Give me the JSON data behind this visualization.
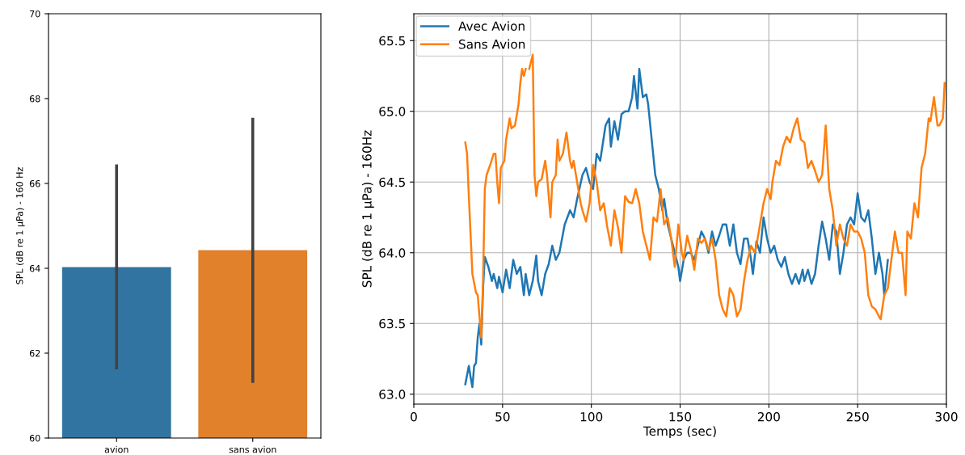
{
  "chart_data": [
    {
      "type": "bar",
      "ylabel": "SPL (dB re 1 µPa) - 160 Hz",
      "categories": [
        "avion",
        "sans avion"
      ],
      "values": [
        64.03,
        64.43
      ],
      "colors": [
        "#3274a1",
        "#e1812c"
      ],
      "errors": [
        [
          61.62,
          66.45
        ],
        [
          61.3,
          67.55
        ]
      ],
      "ylim": [
        60,
        70
      ],
      "yticks": [
        60,
        62,
        64,
        66,
        68,
        70
      ],
      "grid": false
    },
    {
      "type": "line",
      "xlabel": "Temps (sec)",
      "ylabel": "SPL (dB re 1 µPa) - 160Hz",
      "xlim": [
        0,
        300
      ],
      "xticks": [
        0,
        50,
        100,
        150,
        200,
        250,
        300
      ],
      "ylim": [
        62.93,
        65.69
      ],
      "yticks": [
        {
          "value": 63.0,
          "label": "63.0"
        },
        {
          "value": 63.5,
          "label": "63.5"
        },
        {
          "value": 64.0,
          "label": "64.0"
        },
        {
          "value": 64.5,
          "label": "64.5"
        },
        {
          "value": 65.0,
          "label": "65.0"
        },
        {
          "value": 65.5,
          "label": "65.5"
        }
      ],
      "grid": true,
      "legend": "top left",
      "series": [
        {
          "name": "Avec Avion",
          "color": "#1f77b4",
          "x": [
            29,
            31,
            32,
            33,
            34,
            35,
            36,
            37,
            38,
            39,
            40,
            42,
            44,
            45,
            47,
            48,
            50,
            52,
            54,
            56,
            58,
            60,
            62,
            63,
            65,
            67,
            69,
            70,
            72,
            74,
            76,
            78,
            80,
            82,
            85,
            88,
            90,
            92,
            95,
            97,
            99,
            101,
            103,
            105,
            108,
            110,
            111,
            113,
            115,
            117,
            119,
            121,
            123,
            124,
            126,
            127,
            129,
            131,
            132,
            134,
            136,
            138,
            140,
            141,
            143,
            145,
            147,
            149,
            150,
            152,
            154,
            156,
            158,
            160,
            162,
            164,
            166,
            168,
            170,
            172,
            174,
            176,
            178,
            180,
            182,
            184,
            186,
            188,
            190,
            191,
            193,
            195,
            197,
            199,
            201,
            203,
            205,
            207,
            209,
            211,
            213,
            215,
            217,
            219,
            220,
            222,
            224,
            226,
            228,
            230,
            232,
            234,
            236,
            238,
            240,
            242,
            244,
            246,
            248,
            250,
            252,
            254,
            256,
            258,
            260,
            262,
            264,
            265,
            267
          ],
          "values": [
            63.07,
            63.2,
            63.12,
            63.05,
            63.2,
            63.22,
            63.4,
            63.5,
            63.35,
            63.75,
            63.97,
            63.9,
            63.8,
            63.85,
            63.75,
            63.83,
            63.72,
            63.88,
            63.75,
            63.95,
            63.85,
            63.9,
            63.7,
            63.85,
            63.7,
            63.8,
            63.98,
            63.8,
            63.7,
            63.85,
            63.92,
            64.05,
            63.95,
            64.0,
            64.2,
            64.3,
            64.25,
            64.38,
            64.55,
            64.6,
            64.5,
            64.45,
            64.7,
            64.65,
            64.9,
            64.95,
            64.75,
            64.93,
            64.8,
            64.98,
            65.0,
            65.0,
            65.1,
            65.25,
            65.02,
            65.3,
            65.1,
            65.12,
            65.05,
            64.8,
            64.55,
            64.45,
            64.3,
            64.38,
            64.2,
            64.1,
            64.0,
            63.9,
            63.8,
            63.95,
            64.0,
            64.0,
            63.95,
            64.05,
            64.15,
            64.1,
            64.0,
            64.15,
            64.05,
            64.12,
            64.2,
            64.2,
            64.05,
            64.2,
            64.0,
            63.92,
            64.1,
            64.1,
            63.95,
            63.85,
            64.08,
            64.0,
            64.25,
            64.1,
            64.0,
            64.05,
            63.95,
            63.9,
            63.97,
            63.85,
            63.78,
            63.85,
            63.78,
            63.88,
            63.8,
            63.88,
            63.78,
            63.85,
            64.05,
            64.22,
            64.1,
            63.95,
            64.2,
            64.15,
            63.85,
            64.0,
            64.2,
            64.25,
            64.2,
            64.42,
            64.25,
            64.22,
            64.3,
            64.1,
            63.85,
            64.0,
            63.85,
            63.7,
            63.95
          ]
        },
        {
          "name": "Sans Avion",
          "color": "#ff7f0e",
          "x": [
            29,
            30,
            31,
            33,
            35,
            36,
            37,
            38,
            39,
            40,
            41,
            43,
            45,
            46,
            47,
            48,
            49,
            51,
            52,
            54,
            55,
            57,
            59,
            60,
            61,
            62,
            63,
            64,
            65,
            67,
            68,
            69,
            70,
            72,
            74,
            75,
            77,
            78,
            80,
            81,
            82,
            84,
            86,
            88,
            89,
            90,
            92,
            94,
            95,
            97,
            99,
            101,
            103,
            105,
            107,
            109,
            111,
            113,
            115,
            117,
            119,
            121,
            123,
            125,
            127,
            129,
            131,
            133,
            135,
            137,
            139,
            141,
            143,
            145,
            147,
            149,
            151,
            152,
            154,
            156,
            158,
            160,
            162,
            164,
            166,
            168,
            170,
            172,
            174,
            176,
            178,
            180,
            182,
            184,
            186,
            188,
            190,
            192,
            193,
            195,
            197,
            199,
            201,
            202,
            204,
            206,
            208,
            210,
            212,
            214,
            216,
            218,
            220,
            222,
            224,
            226,
            228,
            230,
            232,
            234,
            236,
            238,
            240,
            242,
            244,
            246,
            248,
            250,
            252,
            254,
            256,
            258,
            260,
            262,
            263,
            265,
            267,
            269,
            271,
            273,
            275,
            277,
            278,
            280,
            282,
            284,
            286,
            288,
            290,
            291,
            293,
            295,
            296,
            298,
            299
          ],
          "values": [
            64.78,
            64.7,
            64.4,
            63.85,
            63.72,
            63.7,
            63.55,
            63.4,
            63.8,
            64.45,
            64.55,
            64.62,
            64.7,
            64.7,
            64.5,
            64.35,
            64.6,
            64.65,
            64.8,
            64.95,
            64.88,
            64.9,
            65.05,
            65.2,
            65.3,
            65.25,
            65.3,
            null,
            65.3,
            65.4,
            64.55,
            64.4,
            64.5,
            64.52,
            64.65,
            64.55,
            64.25,
            64.5,
            64.55,
            64.8,
            64.65,
            64.7,
            64.85,
            64.65,
            64.6,
            64.65,
            64.5,
            64.35,
            64.3,
            64.22,
            64.35,
            64.62,
            64.5,
            64.3,
            64.35,
            64.18,
            64.05,
            64.3,
            64.18,
            64.0,
            64.4,
            64.36,
            64.35,
            64.45,
            64.35,
            64.15,
            64.05,
            63.95,
            64.25,
            64.22,
            64.45,
            64.2,
            64.25,
            64.1,
            63.9,
            64.2,
            64.0,
            63.95,
            64.12,
            64.02,
            63.88,
            64.1,
            64.07,
            64.1,
            64.02,
            64.1,
            63.95,
            63.7,
            63.6,
            63.55,
            63.75,
            63.7,
            63.55,
            63.6,
            63.8,
            63.95,
            64.05,
            64.0,
            64.05,
            64.2,
            64.35,
            64.45,
            64.38,
            64.5,
            64.65,
            64.62,
            64.75,
            64.82,
            64.78,
            64.88,
            64.95,
            64.8,
            64.78,
            64.6,
            64.65,
            64.58,
            64.5,
            64.55,
            64.9,
            64.45,
            64.3,
            64.05,
            64.2,
            64.1,
            64.05,
            64.2,
            64.15,
            64.15,
            64.1,
            64.0,
            63.7,
            63.62,
            63.6,
            63.55,
            63.53,
            63.7,
            63.75,
            63.95,
            64.15,
            64.0,
            64.0,
            63.7,
            64.15,
            64.1,
            64.35,
            64.25,
            64.6,
            64.7,
            64.95,
            64.93,
            65.1,
            64.9,
            64.9,
            64.95,
            65.2
          ]
        }
      ]
    }
  ]
}
